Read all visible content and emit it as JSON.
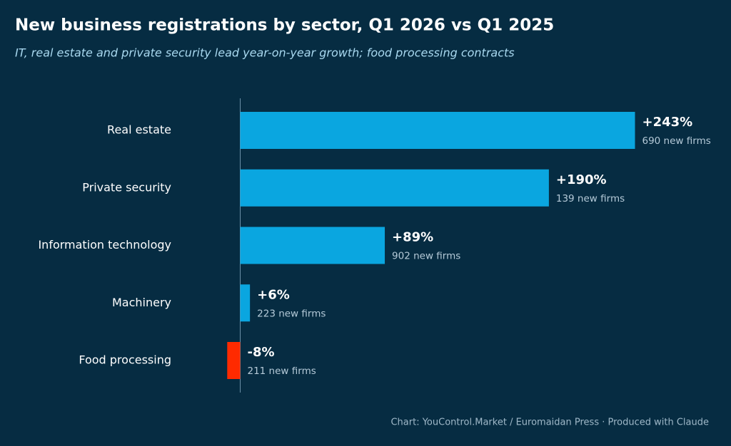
{
  "chart_data": {
    "type": "bar",
    "orientation": "horizontal",
    "title": "New business registrations by sector, Q1 2026 vs Q1 2025",
    "subtitle": "IT, real estate and private security lead year-on-year growth; food processing contracts",
    "categories": [
      "Real estate",
      "Private security",
      "Information technology",
      "Machinery",
      "Food processing"
    ],
    "values": [
      243,
      190,
      89,
      6,
      -8
    ],
    "value_labels": [
      "+243%",
      "+190%",
      "+89%",
      "+6%",
      "-8%"
    ],
    "sublabels": [
      "690 new firms",
      "139 new firms",
      "902 new firms",
      "223 new firms",
      "211 new firms"
    ],
    "colors": [
      "#0aa6e0",
      "#0aa6e0",
      "#0aa6e0",
      "#0aa6e0",
      "#ff2a00"
    ],
    "source": "Chart: YouControl.Market / Euromaidan Press · Produced with Claude"
  }
}
